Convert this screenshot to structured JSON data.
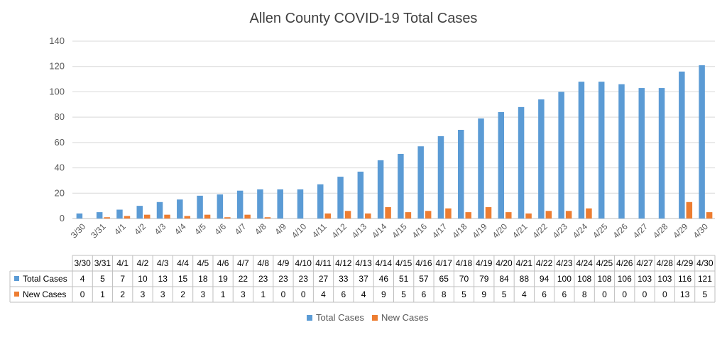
{
  "chart_data": {
    "type": "bar",
    "title": "Allen County COVID-19 Total Cases",
    "xlabel": "",
    "ylabel": "",
    "ylim": [
      0,
      140
    ],
    "yticks": [
      0,
      20,
      40,
      60,
      80,
      100,
      120,
      140
    ],
    "grid": true,
    "legend_position": "bottom",
    "data_table": true,
    "categories": [
      "3/30",
      "3/31",
      "4/1",
      "4/2",
      "4/3",
      "4/4",
      "4/5",
      "4/6",
      "4/7",
      "4/8",
      "4/9",
      "4/10",
      "4/11",
      "4/12",
      "4/13",
      "4/14",
      "4/15",
      "4/16",
      "4/17",
      "4/18",
      "4/19",
      "4/20",
      "4/21",
      "4/22",
      "4/23",
      "4/24",
      "4/25",
      "4/26",
      "4/27",
      "4/28",
      "4/29",
      "4/30"
    ],
    "series": [
      {
        "name": "Total Cases",
        "color": "#5B9BD5",
        "values": [
          4,
          5,
          7,
          10,
          13,
          15,
          18,
          19,
          22,
          23,
          23,
          23,
          27,
          33,
          37,
          46,
          51,
          57,
          65,
          70,
          79,
          84,
          88,
          94,
          100,
          108,
          108,
          106,
          103,
          103,
          116,
          121
        ]
      },
      {
        "name": "New Cases",
        "color": "#ED7D31",
        "values": [
          0,
          1,
          2,
          3,
          3,
          2,
          3,
          1,
          3,
          1,
          0,
          0,
          4,
          6,
          4,
          9,
          5,
          6,
          8,
          5,
          9,
          5,
          4,
          6,
          6,
          8,
          0,
          0,
          0,
          0,
          13,
          5
        ]
      }
    ]
  }
}
